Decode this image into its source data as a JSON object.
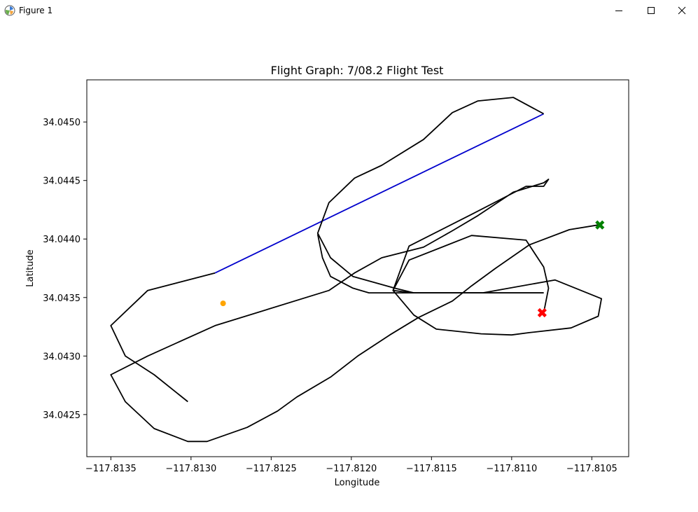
{
  "window": {
    "title": "Figure 1",
    "icon": "matplotlib-icon",
    "controls": [
      "minimize-icon",
      "maximize-icon",
      "close-icon"
    ]
  },
  "chart_data": {
    "type": "line",
    "title": "Flight Graph: 7/08.2 Flight Test",
    "xlabel": "Longitude",
    "ylabel": "Latitude",
    "xlim": [
      -117.81365,
      -117.81027
    ],
    "ylim": [
      34.04214,
      34.04536
    ],
    "xticks": [
      -117.8135,
      -117.813,
      -117.8125,
      -117.812,
      -117.8115,
      -117.811,
      -117.8105
    ],
    "xtick_labels": [
      "−117.8135",
      "−117.8130",
      "−117.8125",
      "−117.8120",
      "−117.8115",
      "−117.8110",
      "−117.8105"
    ],
    "yticks": [
      34.0425,
      34.043,
      34.0435,
      34.044,
      34.0445,
      34.045
    ],
    "ytick_labels": [
      "34.0425",
      "34.0430",
      "34.0435",
      "34.0440",
      "34.0445",
      "34.0450"
    ],
    "grid": false,
    "series": [
      {
        "kind": "path",
        "color": "#000000",
        "x": [
          -117.81046,
          -117.81064,
          -117.81089,
          -117.8111,
          -117.81125,
          -117.81137,
          -117.81158,
          -117.81176,
          -117.81196,
          -117.81213,
          -117.81234,
          -117.81246,
          -117.81265,
          -117.8129,
          -117.81302,
          -117.81323,
          -117.81341,
          -117.8135,
          -117.81327,
          -117.81285,
          -117.81214,
          -117.81198,
          -117.81181,
          -117.81155,
          -117.81137,
          -117.81121,
          -117.81099,
          -117.8108,
          -117.81077,
          -117.8108,
          -117.81091,
          -117.81125,
          -117.81164,
          -117.81174,
          -117.81161,
          -117.81147,
          -117.81119,
          -117.811,
          -117.81089,
          -117.81063,
          -117.81046,
          -117.81044,
          -117.81073,
          -117.81118,
          -117.81162
        ],
        "y": [
          34.04412,
          34.04408,
          34.04395,
          34.04375,
          34.0436,
          34.04347,
          34.04333,
          34.04318,
          34.043,
          34.04282,
          34.04265,
          34.04253,
          34.04239,
          34.04227,
          34.04227,
          34.04238,
          34.04261,
          34.04284,
          34.043,
          34.04326,
          34.04356,
          34.04371,
          34.04384,
          34.04393,
          34.04407,
          34.0442,
          34.0444,
          34.04448,
          34.04451,
          34.04445,
          34.04445,
          34.04421,
          34.04394,
          34.04356,
          34.04335,
          34.04323,
          34.04319,
          34.04318,
          34.0432,
          34.04324,
          34.04334,
          34.04349,
          34.04365,
          34.04354,
          34.04354
        ]
      },
      {
        "kind": "path",
        "color": "#000000",
        "x": [
          -117.81162,
          -117.81174,
          -117.81164,
          -117.81125,
          -117.81091,
          -117.8108,
          -117.81077,
          -117.8108
        ],
        "y": [
          34.04354,
          34.04356,
          34.04382,
          34.04403,
          34.04399,
          34.04376,
          34.04358,
          34.04337
        ]
      },
      {
        "kind": "path",
        "color": "#000000",
        "x": [
          -117.81221,
          -117.81218,
          -117.81213,
          -117.81199,
          -117.81189,
          -117.81173,
          -117.81161,
          -117.81136,
          -117.81122,
          -117.811,
          -117.8108
        ],
        "y": [
          34.04404,
          34.04384,
          34.04368,
          34.04358,
          34.04354,
          34.04354,
          34.04354,
          34.04354,
          34.04354,
          34.04354,
          34.04354
        ]
      },
      {
        "kind": "path",
        "color": "#000000",
        "x": [
          -117.81285,
          -117.81327,
          -117.8135,
          -117.81341,
          -117.81323,
          -117.81302
        ],
        "y": [
          34.04371,
          34.04356,
          34.04326,
          34.043,
          34.04284,
          34.04261
        ]
      },
      {
        "name": "",
        "kind": "path",
        "color": "#0000cc",
        "x": [
          -117.81285,
          -117.8108
        ],
        "y": [
          34.04371,
          34.04507
        ]
      },
      {
        "name": "",
        "kind": "outline",
        "color": "#000000",
        "x": [
          -117.8108,
          -117.81099,
          -117.81121,
          -117.81137,
          -117.81155,
          -117.81181,
          -117.81198,
          -117.81214,
          -117.81221,
          -117.81213,
          -117.81199,
          -117.81173,
          -117.81161,
          -117.81136,
          -117.81122,
          -117.811,
          -117.8108
        ],
        "y": [
          34.04507,
          34.04521,
          34.04518,
          34.04508,
          34.04485,
          34.04463,
          34.04452,
          34.04431,
          34.04405,
          34.04384,
          34.04368,
          34.04358,
          34.04354,
          34.04354,
          34.04354,
          34.04354,
          34.04354
        ]
      }
    ],
    "markers": [
      {
        "name": "",
        "kind": "circle",
        "color": "#ffa500",
        "x": -117.8128,
        "y": 34.04345
      },
      {
        "name": "",
        "kind": "x",
        "color": "#ff0000",
        "x": -117.81081,
        "y": 34.04337
      },
      {
        "name": "",
        "kind": "x",
        "color": "#008000",
        "x": -117.81045,
        "y": 34.04412
      }
    ]
  }
}
